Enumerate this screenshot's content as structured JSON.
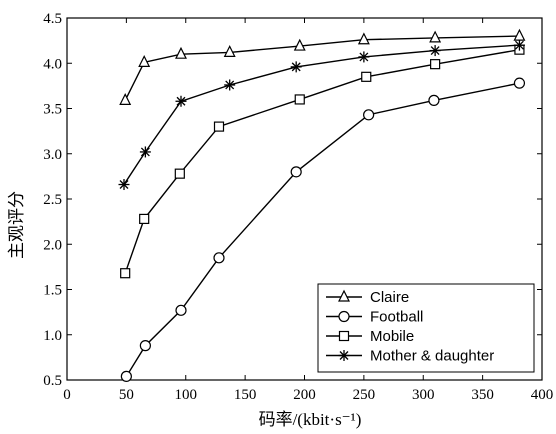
{
  "chart_data": {
    "type": "line",
    "title": "",
    "xlabel": "码率/(kbit·s⁻¹)",
    "ylabel": "主观评分",
    "xlim": [
      0,
      400
    ],
    "ylim": [
      0.5,
      4.5
    ],
    "xticks": [
      0,
      50,
      100,
      150,
      200,
      250,
      300,
      350,
      400
    ],
    "yticks": [
      0.5,
      1.0,
      1.5,
      2.0,
      2.5,
      3.0,
      3.5,
      4.0,
      4.5
    ],
    "ytick_labels": [
      "0.5",
      "1.0",
      "1.5",
      "2.0",
      "2.5",
      "3.0",
      "3.5",
      "4.0",
      "4.5"
    ],
    "grid": false,
    "legend_position": "bottom-right",
    "series": [
      {
        "name": "Claire",
        "marker": "triangle",
        "points": [
          [
            49,
            3.59
          ],
          [
            65,
            4.01
          ],
          [
            96,
            4.1
          ],
          [
            137,
            4.12
          ],
          [
            196,
            4.19
          ],
          [
            250,
            4.26
          ],
          [
            310,
            4.28
          ],
          [
            381,
            4.3
          ]
        ]
      },
      {
        "name": "Football",
        "marker": "circle",
        "points": [
          [
            50,
            0.54
          ],
          [
            66,
            0.88
          ],
          [
            96,
            1.27
          ],
          [
            128,
            1.85
          ],
          [
            193,
            2.8
          ],
          [
            254,
            3.43
          ],
          [
            309,
            3.59
          ],
          [
            381,
            3.78
          ]
        ]
      },
      {
        "name": "Mobile",
        "marker": "square",
        "points": [
          [
            49,
            1.68
          ],
          [
            65,
            2.28
          ],
          [
            95,
            2.78
          ],
          [
            128,
            3.3
          ],
          [
            196,
            3.6
          ],
          [
            252,
            3.85
          ],
          [
            310,
            3.99
          ],
          [
            381,
            4.15
          ]
        ]
      },
      {
        "name": "Mother & daughter",
        "marker": "asterisk",
        "points": [
          [
            48,
            2.66
          ],
          [
            66,
            3.02
          ],
          [
            96,
            3.58
          ],
          [
            137,
            3.76
          ],
          [
            193,
            3.96
          ],
          [
            250,
            4.07
          ],
          [
            310,
            4.14
          ],
          [
            381,
            4.2
          ]
        ]
      }
    ]
  }
}
